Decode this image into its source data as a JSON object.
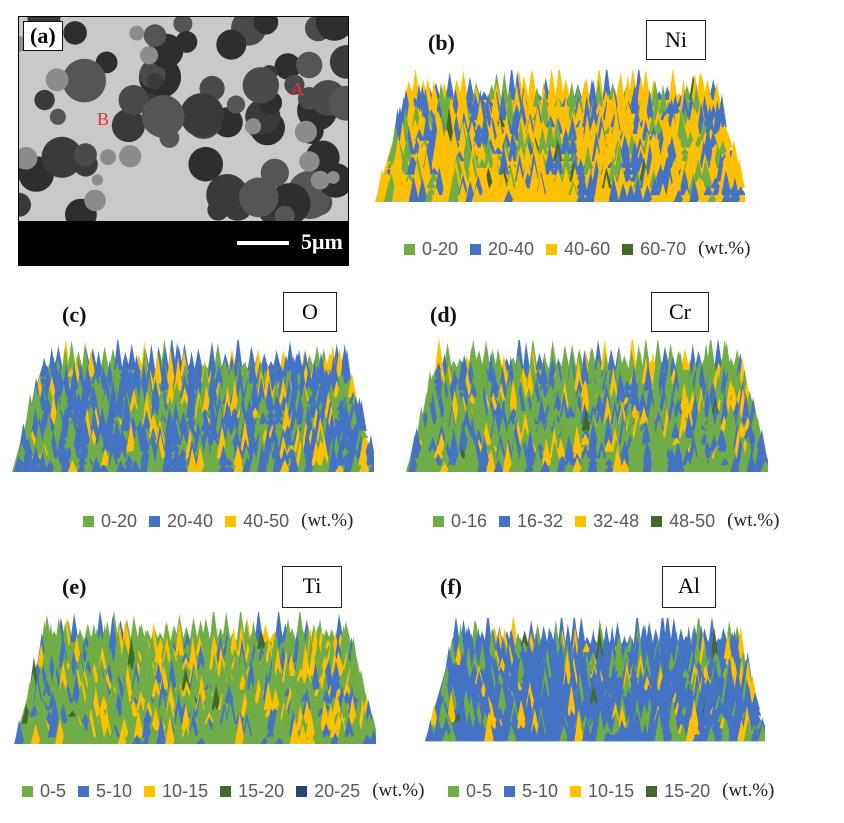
{
  "colors": {
    "green": "#70ad47",
    "blue": "#4472c4",
    "yellow": "#ffc000",
    "dark_green": "#43682b",
    "navy": "#264478"
  },
  "panel_a": {
    "label": "(a)",
    "point_a": "A",
    "point_b": "B",
    "scale_text": "5μm"
  },
  "panels": [
    {
      "id": "b",
      "label": "(b)",
      "element": "Ni",
      "legend": [
        {
          "text": "0-20",
          "color": "#70ad47"
        },
        {
          "text": "20-40",
          "color": "#4472c4"
        },
        {
          "text": "40-60",
          "color": "#ffc000"
        },
        {
          "text": "60-70",
          "color": "#43682b"
        }
      ],
      "unit": "(wt.%)"
    },
    {
      "id": "c",
      "label": "(c)",
      "element": "O",
      "legend": [
        {
          "text": "0-20",
          "color": "#70ad47"
        },
        {
          "text": "20-40",
          "color": "#4472c4"
        },
        {
          "text": "40-50",
          "color": "#ffc000"
        }
      ],
      "unit": "(wt.%)"
    },
    {
      "id": "d",
      "label": "(d)",
      "element": "Cr",
      "legend": [
        {
          "text": "0-16",
          "color": "#70ad47"
        },
        {
          "text": "16-32",
          "color": "#4472c4"
        },
        {
          "text": "32-48",
          "color": "#ffc000"
        },
        {
          "text": "48-50",
          "color": "#43682b"
        }
      ],
      "unit": "(wt.%)"
    },
    {
      "id": "e",
      "label": "(e)",
      "element": "Ti",
      "legend": [
        {
          "text": "0-5",
          "color": "#70ad47"
        },
        {
          "text": "5-10",
          "color": "#4472c4"
        },
        {
          "text": "10-15",
          "color": "#ffc000"
        },
        {
          "text": "15-20",
          "color": "#43682b"
        },
        {
          "text": "20-25",
          "color": "#264478"
        }
      ],
      "unit": "(wt.%)"
    },
    {
      "id": "f",
      "label": "(f)",
      "element": "Al",
      "legend": [
        {
          "text": "0-5",
          "color": "#70ad47"
        },
        {
          "text": "5-10",
          "color": "#4472c4"
        },
        {
          "text": "10-15",
          "color": "#ffc000"
        },
        {
          "text": "15-20",
          "color": "#43682b"
        }
      ],
      "unit": "(wt.%)"
    }
  ]
}
